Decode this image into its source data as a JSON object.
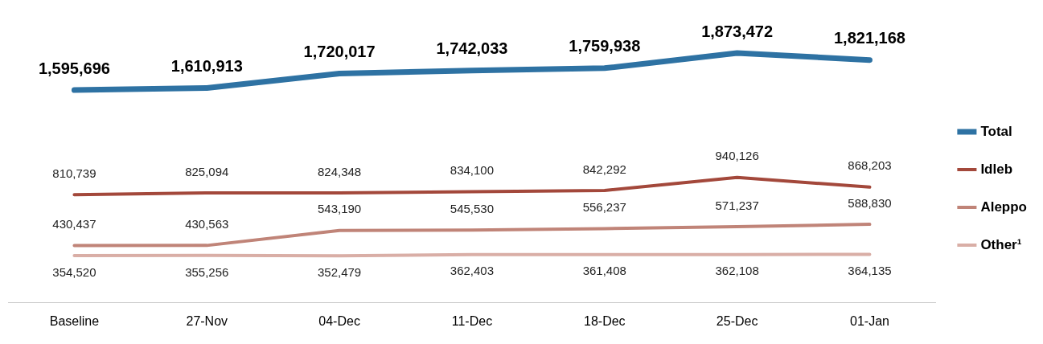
{
  "chart_data": {
    "type": "line",
    "categories": [
      "Baseline",
      "27-Nov",
      "04-Dec",
      "11-Dec",
      "18-Dec",
      "25-Dec",
      "01-Jan"
    ],
    "series": [
      {
        "name": "Total",
        "color": "#2e72a3",
        "values": [
          1595696,
          1610913,
          1720017,
          1742033,
          1759938,
          1873472,
          1821168
        ],
        "value_labels": [
          "1,595,696",
          "1,610,913",
          "1,720,017",
          "1,742,033",
          "1,759,938",
          "1,873,472",
          "1,821,168"
        ]
      },
      {
        "name": "Idleb",
        "color": "#a3483b",
        "values": [
          810739,
          825094,
          824348,
          834100,
          842292,
          940126,
          868203
        ],
        "value_labels": [
          "810,739",
          "825,094",
          "824,348",
          "834,100",
          "842,292",
          "940,126",
          "868,203"
        ]
      },
      {
        "name": "Aleppo",
        "color": "#c08478",
        "values": [
          430437,
          430563,
          543190,
          545530,
          556237,
          571237,
          588830
        ],
        "value_labels": [
          "430,437",
          "430,563",
          "543,190",
          "545,530",
          "556,237",
          "571,237",
          "588,830"
        ]
      },
      {
        "name": "Other¹",
        "color": "#d9aea6",
        "values": [
          354520,
          355256,
          352479,
          362403,
          361408,
          362108,
          364135
        ],
        "value_labels": [
          "354,520",
          "355,256",
          "352,479",
          "362,403",
          "361,408",
          "362,108",
          "364,135"
        ]
      }
    ],
    "legend": "right",
    "grid": false,
    "marker": "none",
    "line_style": "solid"
  }
}
